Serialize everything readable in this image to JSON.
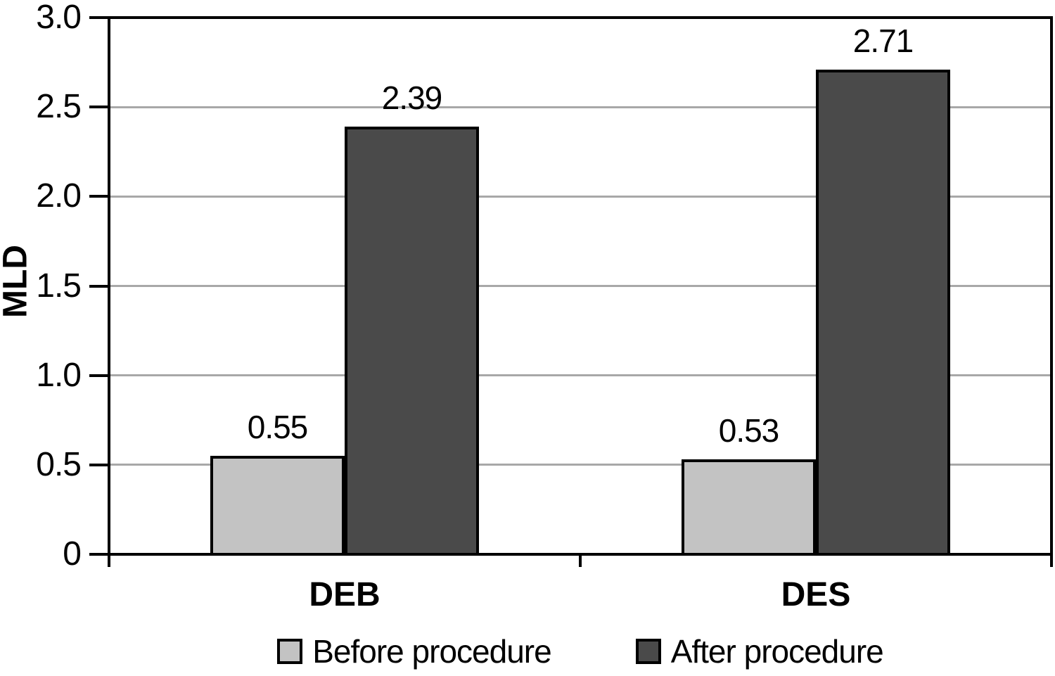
{
  "chart_data": {
    "type": "bar",
    "title": "",
    "ylabel": "MLD",
    "xlabel": "",
    "ylim": [
      0,
      3.0
    ],
    "yticks": [
      0,
      0.5,
      1.0,
      1.5,
      2.0,
      2.5,
      3.0
    ],
    "ytick_labels": [
      "0",
      "0.5",
      "1.0",
      "1.5",
      "2.0",
      "2.5",
      "3.0"
    ],
    "grid": true,
    "legend_position": "bottom",
    "categories": [
      "DEB",
      "DES"
    ],
    "series": [
      {
        "name": "Before procedure",
        "color": "#c3c3c3",
        "values": [
          0.55,
          0.53
        ],
        "value_labels": [
          "0.55",
          "0.53"
        ]
      },
      {
        "name": "After procedure",
        "color": "#4a4a4a",
        "values": [
          2.39,
          2.71
        ],
        "value_labels": [
          "2.39",
          "2.71"
        ]
      }
    ]
  },
  "colors": {
    "background": "#ffffff",
    "axis": "#000000",
    "gridline": "#a8a8a8",
    "text": "#000000",
    "before_bar": "#c3c3c3",
    "after_bar": "#4a4a4a"
  }
}
